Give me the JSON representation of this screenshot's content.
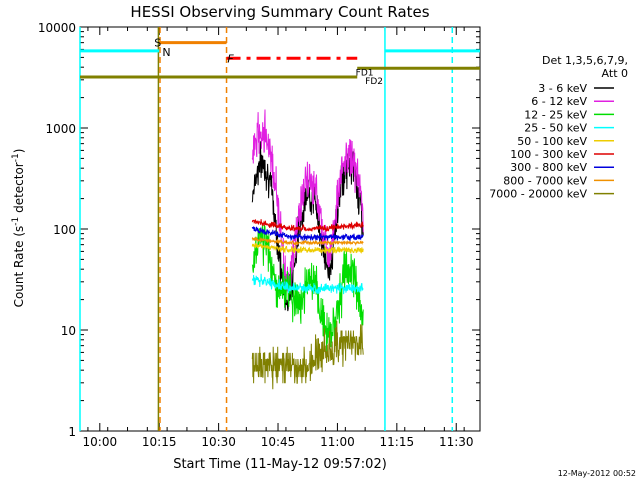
{
  "chart_data": {
    "type": "line",
    "title": "HESSI Observing Summary Count Rates",
    "xlabel": "Start Time (11-May-12 09:57:02)",
    "ylabel_main": "Count Rate (s",
    "ylabel_sup1": "-1",
    "ylabel_mid": " detector",
    "ylabel_sup2": "-1",
    "ylabel_end": ")",
    "y_scale": "log",
    "xlim_minutes": [
      -2,
      99
    ],
    "ylim": [
      1,
      10000
    ],
    "x_ticks": [
      {
        "t": 3,
        "label": "10:00"
      },
      {
        "t": 18,
        "label": "10:15"
      },
      {
        "t": 33,
        "label": "10:30"
      },
      {
        "t": 48,
        "label": "10:45"
      },
      {
        "t": 63,
        "label": "11:00"
      },
      {
        "t": 78,
        "label": "11:15"
      },
      {
        "t": 93,
        "label": "11:30"
      }
    ],
    "y_ticks": [
      {
        "v": 1,
        "label": "1"
      },
      {
        "v": 10,
        "label": "10"
      },
      {
        "v": 100,
        "label": "100"
      },
      {
        "v": 1000,
        "label": "1000"
      },
      {
        "v": 10000,
        "label": "10000"
      }
    ],
    "legend_title": [
      "Det 1,3,5,6,7,9,",
      "Att 0"
    ],
    "legend_placement": "right",
    "series": [
      {
        "name": "3 - 6 keV",
        "color": "#000000",
        "kind": "flare",
        "base": 15,
        "peaks": [
          [
            44,
            450
          ],
          [
            56,
            220
          ],
          [
            66,
            430
          ]
        ],
        "width": 2.8,
        "noise": 0.18
      },
      {
        "name": "6 - 12 keV",
        "color": "#e020e0",
        "kind": "flare",
        "base": 13,
        "peaks": [
          [
            44,
            950
          ],
          [
            56,
            300
          ],
          [
            66,
            520
          ]
        ],
        "width": 3.0,
        "noise": 0.2
      },
      {
        "name": "12 - 25 keV",
        "color": "#00dd00",
        "kind": "flare",
        "base": 9,
        "peaks": [
          [
            44,
            85
          ],
          [
            50,
            28
          ],
          [
            56,
            30
          ],
          [
            66,
            40
          ]
        ],
        "width": 2.5,
        "noise": 0.22
      },
      {
        "name": "25 - 50 keV",
        "color": "#00ffff",
        "kind": "flat",
        "level": 26,
        "start_level": 32,
        "noise": 0.05
      },
      {
        "name": "50 - 100 keV",
        "color": "#eecc00",
        "kind": "flat",
        "level": 62,
        "start_level": 70,
        "noise": 0.03
      },
      {
        "name": "100 - 300 keV",
        "color": "#dd0000",
        "kind": "flat",
        "level": 112,
        "start_level": 120,
        "dip": true,
        "noise": 0.03
      },
      {
        "name": "300 - 800 keV",
        "color": "#0000dd",
        "kind": "flat",
        "level": 83,
        "start_level": 100,
        "noise": 0.03
      },
      {
        "name": "800 - 7000 keV",
        "color": "#f09000",
        "kind": "flat",
        "level": 73,
        "start_level": 80,
        "noise": 0.02
      },
      {
        "name": "7000 - 20000 keV",
        "color": "#808000",
        "kind": "steps",
        "level": 4.5,
        "end_level": 7.5,
        "noise": 0.15
      }
    ],
    "data_window": [
      41.5,
      69.5
    ],
    "state_bars": [
      {
        "label": "S",
        "color": "#f08000",
        "y": 7000,
        "x1": 18,
        "x2": 35
      },
      {
        "label": "N",
        "color": "#00ffff",
        "y": 5800,
        "x1": -2,
        "x2": 18
      },
      {
        "label": "N",
        "color": "#00ffff",
        "y": 5800,
        "x1": 75,
        "x2": 99
      },
      {
        "label": "F",
        "color": "#ff0000",
        "y": 4900,
        "x1": 35,
        "x2": 68
      },
      {
        "label": "FD1",
        "color": "#808000",
        "y": 3900,
        "x1": 68,
        "x2": 99
      },
      {
        "label": "FD2",
        "color": "#808000",
        "y": 3200,
        "x1": -2,
        "x2": 68
      }
    ],
    "label_text": {
      "S": "S",
      "N": "N",
      "F": "F",
      "FD1": "FD1",
      "FD2": "FD2"
    },
    "vlines": [
      {
        "t": -2,
        "color": "#00ffff",
        "style": "solid"
      },
      {
        "t": 17.8,
        "color": "#808000",
        "style": "solid"
      },
      {
        "t": 18.2,
        "color": "#f08000",
        "style": "dashed"
      },
      {
        "t": 35,
        "color": "#f08000",
        "style": "dashed"
      },
      {
        "t": 75,
        "color": "#00ffff",
        "style": "solid"
      },
      {
        "t": 92,
        "color": "#00ffff",
        "style": "dashed"
      }
    ],
    "timestamp": "12-May-2012 00:52"
  }
}
